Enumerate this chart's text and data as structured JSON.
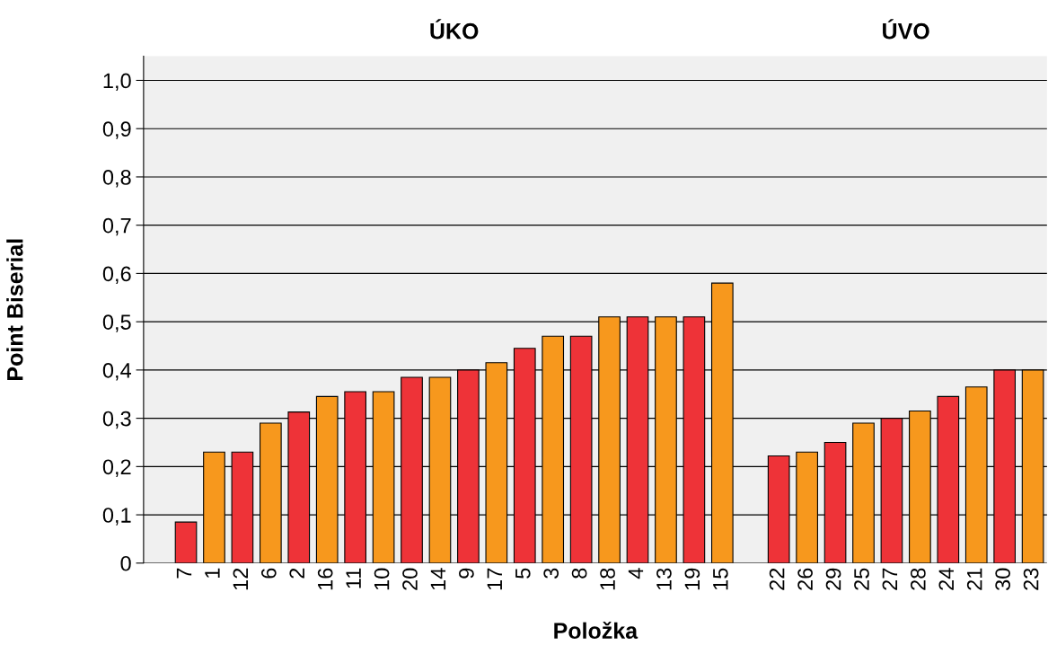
{
  "chart_data": {
    "type": "bar",
    "xlabel": "Položka",
    "ylabel": "Point Biserial",
    "annotations": [
      "ÚKO",
      "ÚVO"
    ],
    "categories": [
      "7",
      "1",
      "12",
      "6",
      "2",
      "16",
      "11",
      "10",
      "20",
      "14",
      "9",
      "17",
      "5",
      "3",
      "8",
      "18",
      "4",
      "13",
      "19",
      "15",
      null,
      "22",
      "26",
      "29",
      "25",
      "27",
      "28",
      "24",
      "21",
      "30",
      "23"
    ],
    "values": [
      0.085,
      0.23,
      0.23,
      0.29,
      0.313,
      0.345,
      0.355,
      0.355,
      0.385,
      0.385,
      0.4,
      0.415,
      0.445,
      0.47,
      0.47,
      0.51,
      0.51,
      0.51,
      0.51,
      0.58,
      null,
      0.222,
      0.23,
      0.25,
      0.29,
      0.3,
      0.315,
      0.345,
      0.365,
      0.4,
      0.4
    ],
    "colors": [
      "#ee3338",
      "#f7981d",
      "#ee3338",
      "#f7981d",
      "#ee3338",
      "#f7981d",
      "#ee3338",
      "#f7981d",
      "#ee3338",
      "#f7981d",
      "#ee3338",
      "#f7981d",
      "#ee3338",
      "#f7981d",
      "#ee3338",
      "#f7981d",
      "#ee3338",
      "#f7981d",
      "#ee3338",
      "#f7981d",
      null,
      "#ee3338",
      "#f7981d",
      "#ee3338",
      "#f7981d",
      "#ee3338",
      "#f7981d",
      "#ee3338",
      "#f7981d",
      "#ee3338",
      "#f7981d"
    ],
    "ylim": [
      0,
      1.05
    ],
    "yticks": [
      0,
      {
        "value": 0.1,
        "label": "0,1"
      },
      {
        "value": 0.2,
        "label": "0,2"
      },
      {
        "value": 0.3,
        "label": "0,3"
      },
      {
        "value": 0.4,
        "label": "0,4"
      },
      {
        "value": 0.5,
        "label": "0,5"
      },
      {
        "value": 0.6,
        "label": "0,6"
      },
      {
        "value": 0.7,
        "label": "0,7"
      },
      {
        "value": 0.8,
        "label": "0,8"
      },
      {
        "value": 0.9,
        "label": "0,9"
      },
      {
        "value": 1.0,
        "label": "1,0"
      }
    ],
    "grid": "y",
    "legend": false
  }
}
